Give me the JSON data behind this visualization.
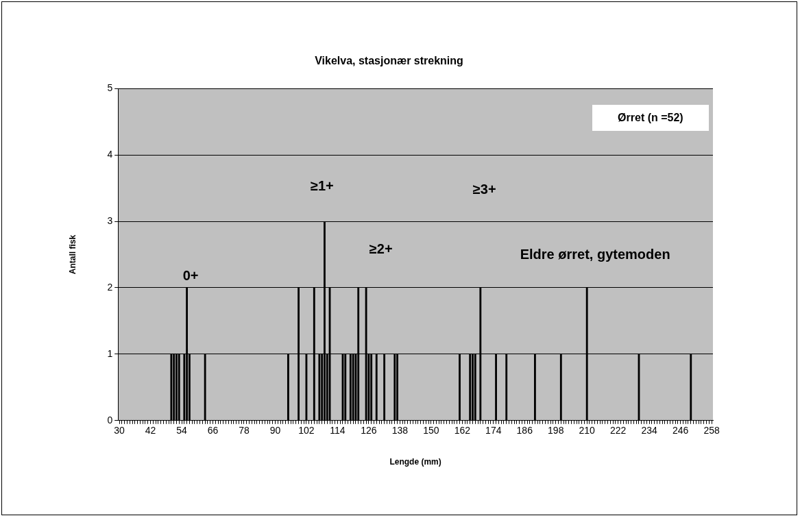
{
  "chart_data": {
    "type": "bar",
    "title": "Vikelva, stasjonær strekning",
    "xlabel": "Lengde (mm)",
    "ylabel": "Antall fisk",
    "categories": [
      "30",
      null,
      null,
      null,
      null,
      null,
      null,
      null,
      null,
      null,
      null,
      null,
      "42",
      null,
      null,
      null,
      null,
      null,
      null,
      null,
      null,
      null,
      null,
      null,
      "54",
      null,
      null,
      null,
      null,
      null,
      null,
      null,
      null,
      null,
      null,
      null,
      "66",
      null,
      null,
      null,
      null,
      null,
      null,
      null,
      null,
      null,
      null,
      null,
      "78",
      null,
      null,
      null,
      null,
      null,
      null,
      null,
      null,
      null,
      null,
      null,
      "90",
      null,
      null,
      null,
      null,
      null,
      null,
      null,
      null,
      null,
      null,
      null,
      "102",
      null,
      null,
      null,
      null,
      null,
      null,
      null,
      null,
      null,
      null,
      null,
      "114",
      null,
      null,
      null,
      null,
      null,
      null,
      null,
      null,
      null,
      null,
      null,
      "126",
      null,
      null,
      null,
      null,
      null,
      null,
      null,
      null,
      null,
      null,
      null,
      "138",
      null,
      null,
      null,
      null,
      null,
      null,
      null,
      null,
      null,
      null,
      null,
      "150",
      null,
      null,
      null,
      null,
      null,
      null,
      null,
      null,
      null,
      null,
      null,
      "162",
      null,
      null,
      null,
      null,
      null,
      null,
      null,
      null,
      null,
      null,
      null,
      "174",
      null,
      null,
      null,
      null,
      null,
      null,
      null,
      null,
      null,
      null,
      null,
      "186",
      null,
      null,
      null,
      null,
      null,
      null,
      null,
      null,
      null,
      null,
      null,
      "198",
      null,
      null,
      null,
      null,
      null,
      null,
      null,
      null,
      null,
      null,
      null,
      "210",
      null,
      null,
      null,
      null,
      null,
      null,
      null,
      null,
      null,
      null,
      null,
      "222",
      null,
      null,
      null,
      null,
      null,
      null,
      null,
      null,
      null,
      null,
      null,
      "234",
      null,
      null,
      null,
      null,
      null,
      null,
      null,
      null,
      null,
      null,
      null,
      "246",
      null,
      null,
      null,
      null,
      null,
      null,
      null,
      null,
      null,
      null,
      null,
      "258"
    ],
    "values": [
      0,
      0,
      0,
      0,
      0,
      0,
      0,
      0,
      0,
      0,
      0,
      0,
      0,
      0,
      0,
      0,
      0,
      0,
      0,
      0,
      1,
      1,
      1,
      1,
      0,
      1,
      2,
      1,
      0,
      0,
      0,
      0,
      0,
      1,
      0,
      0,
      0,
      0,
      0,
      0,
      0,
      0,
      0,
      0,
      0,
      0,
      0,
      0,
      0,
      0,
      0,
      0,
      0,
      0,
      0,
      0,
      0,
      0,
      0,
      0,
      0,
      0,
      0,
      0,
      0,
      1,
      0,
      0,
      0,
      2,
      0,
      0,
      1,
      0,
      0,
      2,
      0,
      1,
      1,
      3,
      1,
      2,
      0,
      0,
      0,
      0,
      1,
      1,
      0,
      1,
      1,
      1,
      2,
      0,
      0,
      2,
      1,
      1,
      0,
      1,
      0,
      0,
      1,
      0,
      0,
      0,
      1,
      1,
      0,
      0,
      0,
      0,
      0,
      0,
      0,
      0,
      0,
      0,
      0,
      0,
      0,
      0,
      0,
      0,
      0,
      0,
      0,
      0,
      0,
      0,
      0,
      1,
      0,
      0,
      0,
      1,
      1,
      1,
      0,
      2,
      0,
      0,
      0,
      0,
      0,
      1,
      0,
      0,
      0,
      1,
      0,
      0,
      0,
      0,
      0,
      0,
      0,
      0,
      0,
      0,
      1,
      0,
      0,
      0,
      0,
      0,
      0,
      0,
      0,
      0,
      1,
      0,
      0,
      0,
      0,
      0,
      0,
      0,
      0,
      0,
      2,
      0,
      0,
      0,
      0,
      0,
      0,
      0,
      0,
      0,
      0,
      0,
      0,
      0,
      0,
      0,
      0,
      0,
      0,
      0,
      1,
      0,
      0,
      0,
      0,
      0,
      0,
      0,
      0,
      0,
      0,
      0,
      0,
      0,
      0,
      0,
      0,
      0,
      0,
      0,
      1,
      0,
      0,
      0,
      0,
      0,
      0,
      0,
      0
    ],
    "color": "#000000",
    "ylim": [
      0,
      5
    ],
    "yticks": [
      0,
      1,
      2,
      3,
      4,
      5
    ],
    "grid": "y",
    "legend": false,
    "annotations": [
      "Ørret (n =52)",
      "0+",
      "≥1+",
      "≥2+",
      "≥3+",
      "Eldre ørret, gytemoden"
    ]
  }
}
